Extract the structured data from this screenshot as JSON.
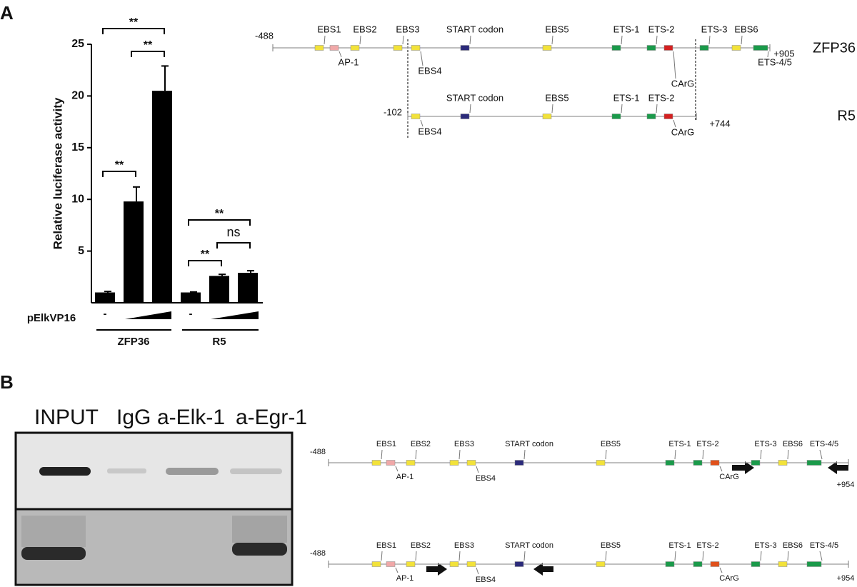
{
  "panel_labels": [
    "A",
    "B"
  ],
  "chart_data": {
    "type": "bar",
    "ylabel": "Relative luciferase activity",
    "categories": [
      "-",
      null,
      null,
      "-",
      null,
      null
    ],
    "values": [
      1.0,
      9.8,
      20.5,
      1.0,
      2.6,
      2.9
    ],
    "errors": [
      0.1,
      1.4,
      2.4,
      0.05,
      0.15,
      0.2
    ],
    "color": "#000000",
    "ylim": [
      0,
      25
    ],
    "yticks": [
      5,
      10,
      15,
      20,
      25
    ],
    "row_label": "pElkVP16",
    "groups": [
      "ZFP36",
      "R5"
    ],
    "annotations": [
      "**",
      "**",
      "**",
      "**",
      "ns",
      "**"
    ]
  },
  "promoter_maps": [
    {
      "start": "-488",
      "end": "+905",
      "name": "ZFP36",
      "elements": [
        {
          "label": "EBS1",
          "color": "#f2e23a"
        },
        {
          "label": "AP-1",
          "color": "#f0a8a8"
        },
        {
          "label": "EBS2",
          "color": "#f2e23a"
        },
        {
          "label": "EBS3",
          "color": "#f2e23a"
        },
        {
          "label": "EBS4",
          "color": "#f2e23a"
        },
        {
          "label": "START codon",
          "color": "#2b2a7a"
        },
        {
          "label": "EBS5",
          "color": "#f2e23a"
        },
        {
          "label": "ETS-1",
          "color": "#1a9a4a"
        },
        {
          "label": "ETS-2",
          "color": "#1a9a4a"
        },
        {
          "label": "CArG",
          "color": "#d42020"
        },
        {
          "label": "ETS-3",
          "color": "#1a9a4a"
        },
        {
          "label": "EBS6",
          "color": "#f2e23a"
        },
        {
          "label": "ETS-4/5",
          "color": "#1a9a4a"
        }
      ]
    },
    {
      "start": "-102",
      "end": "+744",
      "name": "R5",
      "elements": [
        {
          "label": "EBS4",
          "color": "#f2e23a"
        },
        {
          "label": "START codon",
          "color": "#2b2a7a"
        },
        {
          "label": "EBS5",
          "color": "#f2e23a"
        },
        {
          "label": "ETS-1",
          "color": "#1a9a4a"
        },
        {
          "label": "ETS-2",
          "color": "#1a9a4a"
        },
        {
          "label": "CArG",
          "color": "#d42020"
        }
      ]
    }
  ],
  "primer_maps": [
    {
      "start": "-488",
      "end": "+954",
      "elements": [
        {
          "label": "EBS1",
          "color": "#f2e23a"
        },
        {
          "label": "AP-1",
          "color": "#f0a8a8"
        },
        {
          "label": "EBS2",
          "color": "#f2e23a"
        },
        {
          "label": "EBS3",
          "color": "#f2e23a"
        },
        {
          "label": "EBS4",
          "color": "#f2e23a"
        },
        {
          "label": "START codon",
          "color": "#2b2a7a"
        },
        {
          "label": "EBS5",
          "color": "#f2e23a"
        },
        {
          "label": "ETS-1",
          "color": "#1a9a4a"
        },
        {
          "label": "ETS-2",
          "color": "#1a9a4a"
        },
        {
          "label": "CArG",
          "color": "#e0501a"
        },
        {
          "label": "ETS-3",
          "color": "#1a9a4a"
        },
        {
          "label": "EBS6",
          "color": "#f2e23a"
        },
        {
          "label": "ETS-4/5",
          "color": "#1a9a4a"
        }
      ]
    },
    {
      "start": "-488",
      "end": "+954",
      "elements": [
        {
          "label": "EBS1",
          "color": "#f2e23a"
        },
        {
          "label": "AP-1",
          "color": "#f0a8a8"
        },
        {
          "label": "EBS2",
          "color": "#f2e23a"
        },
        {
          "label": "EBS3",
          "color": "#f2e23a"
        },
        {
          "label": "EBS4",
          "color": "#f2e23a"
        },
        {
          "label": "START codon",
          "color": "#2b2a7a"
        },
        {
          "label": "EBS5",
          "color": "#f2e23a"
        },
        {
          "label": "ETS-1",
          "color": "#1a9a4a"
        },
        {
          "label": "ETS-2",
          "color": "#1a9a4a"
        },
        {
          "label": "CArG",
          "color": "#e0501a"
        },
        {
          "label": "ETS-3",
          "color": "#1a9a4a"
        },
        {
          "label": "EBS6",
          "color": "#f2e23a"
        },
        {
          "label": "ETS-4/5",
          "color": "#1a9a4a"
        }
      ]
    }
  ],
  "gel": {
    "lanes": [
      "INPUT",
      "IgG",
      "a-Elk-1",
      "a-Egr-1"
    ]
  }
}
